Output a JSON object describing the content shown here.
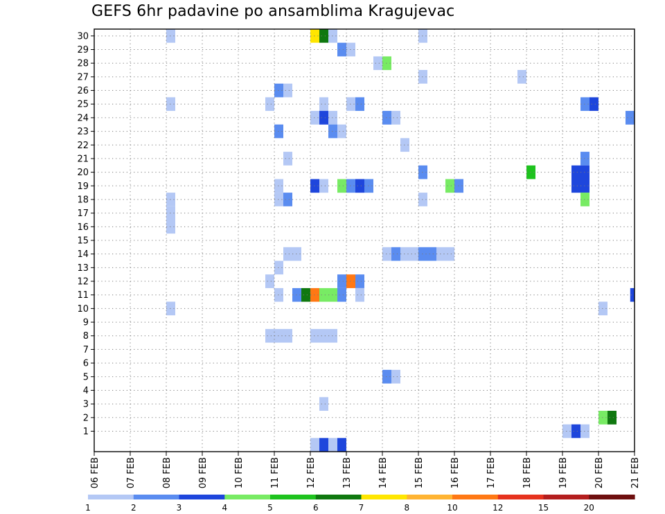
{
  "chart_data": {
    "type": "heatmap",
    "title": "GEFS 6hr padavine po ansamblima Kragujevac",
    "xlabel": "",
    "ylabel": "",
    "x_tick_labels": [
      "06 FEB",
      "07 FEB",
      "08 FEB",
      "09 FEB",
      "10 FEB",
      "11 FEB",
      "12 FEB",
      "13 FEB",
      "14 FEB",
      "15 FEB",
      "16 FEB",
      "17 FEB",
      "18 FEB",
      "19 FEB",
      "20 FEB",
      "21 FEB"
    ],
    "y_tick_labels": [
      "1",
      "2",
      "3",
      "4",
      "5",
      "6",
      "7",
      "8",
      "9",
      "10",
      "11",
      "12",
      "13",
      "14",
      "15",
      "16",
      "17",
      "18",
      "19",
      "20",
      "21",
      "22",
      "23",
      "24",
      "25",
      "26",
      "27",
      "28",
      "29",
      "30"
    ],
    "xlim_days": [
      0,
      15
    ],
    "ylim_members": [
      0,
      30
    ],
    "grid": true,
    "colorbar": {
      "labels": [
        "1",
        "2",
        "3",
        "4",
        "5",
        "6",
        "7",
        "8",
        "10",
        "12",
        "15",
        "20"
      ],
      "colors": [
        "#b4c8f5",
        "#5a8cf0",
        "#1e46dc",
        "#78eb64",
        "#1ec31e",
        "#0f780f",
        "#ffe600",
        "#ffb432",
        "#ff7814",
        "#e6321e",
        "#b41e1e",
        "#6e0f0f"
      ]
    },
    "cells": [
      {
        "member": 30,
        "day": 2.0,
        "level": 1
      },
      {
        "member": 30,
        "day": 6.0,
        "level": 7
      },
      {
        "member": 30,
        "day": 6.25,
        "level": 6
      },
      {
        "member": 30,
        "day": 6.5,
        "level": 1
      },
      {
        "member": 30,
        "day": 9.0,
        "level": 1
      },
      {
        "member": 29,
        "day": 6.75,
        "level": 2
      },
      {
        "member": 29,
        "day": 7.0,
        "level": 1
      },
      {
        "member": 28,
        "day": 7.75,
        "level": 1
      },
      {
        "member": 28,
        "day": 8.0,
        "level": 4
      },
      {
        "member": 27,
        "day": 9.0,
        "level": 1
      },
      {
        "member": 27,
        "day": 11.75,
        "level": 1
      },
      {
        "member": 26,
        "day": 5.0,
        "level": 2
      },
      {
        "member": 26,
        "day": 5.25,
        "level": 1
      },
      {
        "member": 25,
        "day": 2.0,
        "level": 1
      },
      {
        "member": 25,
        "day": 4.75,
        "level": 1
      },
      {
        "member": 25,
        "day": 6.25,
        "level": 1
      },
      {
        "member": 25,
        "day": 7.0,
        "level": 1
      },
      {
        "member": 25,
        "day": 7.25,
        "level": 2
      },
      {
        "member": 25,
        "day": 13.5,
        "level": 2
      },
      {
        "member": 25,
        "day": 13.75,
        "level": 3
      },
      {
        "member": 24,
        "day": 6.0,
        "level": 1
      },
      {
        "member": 24,
        "day": 6.25,
        "level": 3
      },
      {
        "member": 24,
        "day": 6.5,
        "level": 1
      },
      {
        "member": 24,
        "day": 8.0,
        "level": 2
      },
      {
        "member": 24,
        "day": 8.25,
        "level": 1
      },
      {
        "member": 24,
        "day": 14.75,
        "level": 2
      },
      {
        "member": 23,
        "day": 5.0,
        "level": 2
      },
      {
        "member": 23,
        "day": 6.5,
        "level": 2
      },
      {
        "member": 23,
        "day": 6.75,
        "level": 1
      },
      {
        "member": 22,
        "day": 8.5,
        "level": 1
      },
      {
        "member": 21,
        "day": 5.25,
        "level": 1
      },
      {
        "member": 21,
        "day": 13.5,
        "level": 2
      },
      {
        "member": 20,
        "day": 9.0,
        "level": 2
      },
      {
        "member": 20,
        "day": 12.0,
        "level": 5
      },
      {
        "member": 20,
        "day": 13.25,
        "level": 3
      },
      {
        "member": 20,
        "day": 13.5,
        "level": 3
      },
      {
        "member": 19,
        "day": 5.0,
        "level": 1
      },
      {
        "member": 19,
        "day": 6.0,
        "level": 3
      },
      {
        "member": 19,
        "day": 6.25,
        "level": 1
      },
      {
        "member": 19,
        "day": 6.75,
        "level": 4
      },
      {
        "member": 19,
        "day": 7.0,
        "level": 2
      },
      {
        "member": 19,
        "day": 7.25,
        "level": 3
      },
      {
        "member": 19,
        "day": 7.5,
        "level": 2
      },
      {
        "member": 19,
        "day": 9.75,
        "level": 4
      },
      {
        "member": 19,
        "day": 10.0,
        "level": 2
      },
      {
        "member": 19,
        "day": 13.25,
        "level": 3
      },
      {
        "member": 19,
        "day": 13.5,
        "level": 3
      },
      {
        "member": 18,
        "day": 2.0,
        "level": 1
      },
      {
        "member": 18,
        "day": 5.0,
        "level": 1
      },
      {
        "member": 18,
        "day": 5.25,
        "level": 2
      },
      {
        "member": 18,
        "day": 9.0,
        "level": 1
      },
      {
        "member": 18,
        "day": 13.5,
        "level": 4
      },
      {
        "member": 17,
        "day": 2.0,
        "level": 1
      },
      {
        "member": 16,
        "day": 2.0,
        "level": 1
      },
      {
        "member": 14,
        "day": 5.25,
        "level": 1
      },
      {
        "member": 14,
        "day": 5.5,
        "level": 1
      },
      {
        "member": 14,
        "day": 8.0,
        "level": 1
      },
      {
        "member": 14,
        "day": 8.25,
        "level": 2
      },
      {
        "member": 14,
        "day": 8.5,
        "level": 1
      },
      {
        "member": 14,
        "day": 8.75,
        "level": 1
      },
      {
        "member": 14,
        "day": 9.0,
        "level": 2
      },
      {
        "member": 14,
        "day": 9.25,
        "level": 2
      },
      {
        "member": 14,
        "day": 9.5,
        "level": 1
      },
      {
        "member": 14,
        "day": 9.75,
        "level": 1
      },
      {
        "member": 13,
        "day": 5.0,
        "level": 1
      },
      {
        "member": 12,
        "day": 4.75,
        "level": 1
      },
      {
        "member": 12,
        "day": 6.75,
        "level": 2
      },
      {
        "member": 12,
        "day": 7.0,
        "level": 9
      },
      {
        "member": 12,
        "day": 7.25,
        "level": 2
      },
      {
        "member": 11,
        "day": 5.0,
        "level": 1
      },
      {
        "member": 11,
        "day": 5.5,
        "level": 2
      },
      {
        "member": 11,
        "day": 5.75,
        "level": 6
      },
      {
        "member": 11,
        "day": 6.0,
        "level": 9
      },
      {
        "member": 11,
        "day": 6.25,
        "level": 4
      },
      {
        "member": 11,
        "day": 6.5,
        "level": 4
      },
      {
        "member": 11,
        "day": 6.75,
        "level": 2
      },
      {
        "member": 11,
        "day": 7.25,
        "level": 1
      },
      {
        "member": 11,
        "day": 14.88,
        "level": 3
      },
      {
        "member": 10,
        "day": 2.0,
        "level": 1
      },
      {
        "member": 10,
        "day": 14.0,
        "level": 1
      },
      {
        "member": 8,
        "day": 4.75,
        "level": 1
      },
      {
        "member": 8,
        "day": 5.0,
        "level": 1
      },
      {
        "member": 8,
        "day": 5.25,
        "level": 1
      },
      {
        "member": 8,
        "day": 6.0,
        "level": 1
      },
      {
        "member": 8,
        "day": 6.25,
        "level": 1
      },
      {
        "member": 8,
        "day": 6.5,
        "level": 1
      },
      {
        "member": 5,
        "day": 8.0,
        "level": 2
      },
      {
        "member": 5,
        "day": 8.25,
        "level": 1
      },
      {
        "member": 3,
        "day": 6.25,
        "level": 1
      },
      {
        "member": 2,
        "day": 14.0,
        "level": 4
      },
      {
        "member": 2,
        "day": 14.25,
        "level": 6
      },
      {
        "member": 1,
        "day": 13.0,
        "level": 1
      },
      {
        "member": 1,
        "day": 13.25,
        "level": 3
      },
      {
        "member": 1,
        "day": 13.5,
        "level": 1
      },
      {
        "member": 0,
        "day": 6.0,
        "level": 1
      },
      {
        "member": 0,
        "day": 6.25,
        "level": 3
      },
      {
        "member": 0,
        "day": 6.5,
        "level": 1
      },
      {
        "member": 0,
        "day": 6.75,
        "level": 3
      }
    ]
  }
}
